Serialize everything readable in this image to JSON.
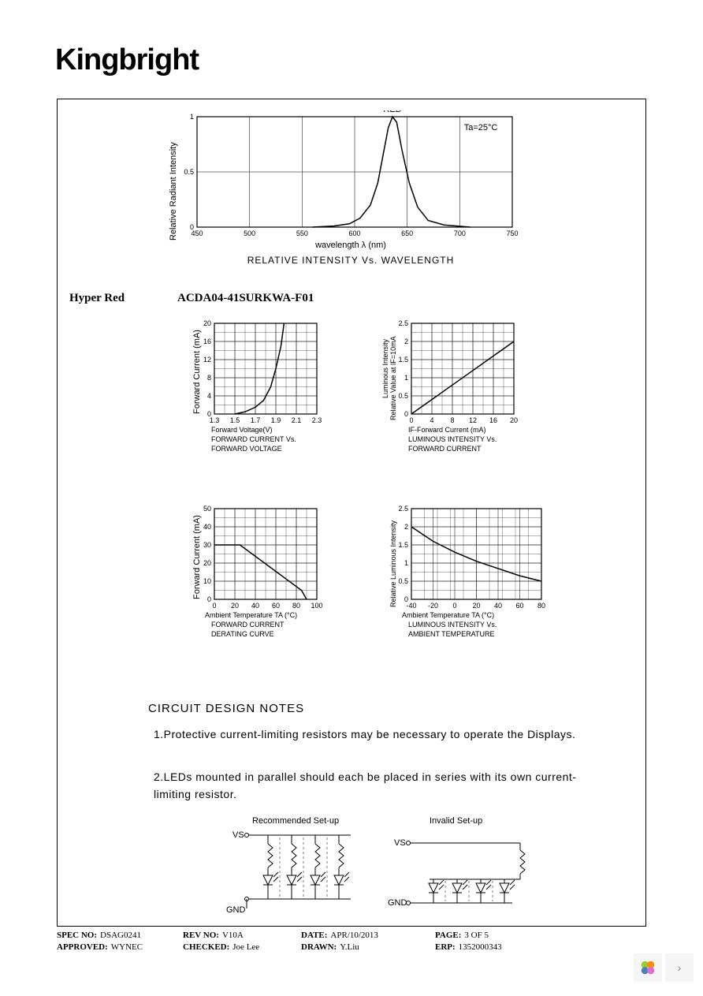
{
  "brand": "Kingbright",
  "section": {
    "hyper_red_label": "Hyper Red",
    "part_number": "ACDA04-41SURKWA-F01"
  },
  "chart_top": {
    "type": "line",
    "peak_label": "RED",
    "condition": "Ta=25°C",
    "ylabel": "Relative Radiant Intensity",
    "xlabel": "wavelength λ  (nm)",
    "caption": "RELATIVE INTENSITY Vs. WAVELENGTH",
    "xlim": [
      450,
      750
    ],
    "ylim": [
      0,
      1.0
    ],
    "xticks": [
      450,
      500,
      550,
      600,
      650,
      700,
      750
    ],
    "yticks": [
      0,
      0.5,
      1.0
    ],
    "curve": [
      [
        560,
        0
      ],
      [
        580,
        0.01
      ],
      [
        595,
        0.03
      ],
      [
        605,
        0.08
      ],
      [
        615,
        0.2
      ],
      [
        622,
        0.4
      ],
      [
        628,
        0.7
      ],
      [
        632,
        0.9
      ],
      [
        636,
        1.0
      ],
      [
        640,
        0.95
      ],
      [
        645,
        0.7
      ],
      [
        652,
        0.4
      ],
      [
        660,
        0.18
      ],
      [
        670,
        0.06
      ],
      [
        685,
        0.02
      ],
      [
        710,
        0
      ]
    ],
    "line_color": "#000000",
    "grid_color": "#000000",
    "background_color": "#ffffff",
    "font_size": 11
  },
  "chart_fv": {
    "type": "line",
    "ylabel": "Forward Current (mA)",
    "xlabel": "Forward Voltage(V)",
    "caption1": "FORWARD CURRENT Vs.",
    "caption2": "FORWARD VOLTAGE",
    "xlim": [
      1.3,
      2.3
    ],
    "ylim": [
      0,
      20
    ],
    "xticks": [
      1.3,
      1.5,
      1.7,
      1.9,
      2.1,
      2.3
    ],
    "yticks": [
      0,
      4,
      8,
      12,
      16,
      20
    ],
    "curve": [
      [
        1.5,
        0
      ],
      [
        1.6,
        0.5
      ],
      [
        1.7,
        1.5
      ],
      [
        1.78,
        3
      ],
      [
        1.85,
        6
      ],
      [
        1.9,
        10
      ],
      [
        1.95,
        15
      ],
      [
        1.98,
        20
      ]
    ],
    "line_color": "#000000",
    "grid_step_x_minor": 0.1,
    "grid_step_y_minor": 2
  },
  "chart_li": {
    "type": "line",
    "ylabel1": "Luminous Intensity",
    "ylabel2": "Relative Value at IF=10mA",
    "xlabel": "IF-Forward Current (mA)",
    "caption1": "LUMINOUS INTENSITY Vs.",
    "caption2": "FORWARD CURRENT",
    "xlim": [
      0,
      20
    ],
    "ylim": [
      0,
      2.5
    ],
    "xticks": [
      0,
      4,
      8,
      12,
      16,
      20
    ],
    "yticks": [
      0,
      0.5,
      1.0,
      1.5,
      2.0,
      2.5
    ],
    "curve": [
      [
        0,
        0
      ],
      [
        4,
        0.4
      ],
      [
        8,
        0.8
      ],
      [
        12,
        1.2
      ],
      [
        16,
        1.6
      ],
      [
        20,
        2.0
      ]
    ],
    "line_color": "#000000"
  },
  "chart_derating": {
    "type": "line",
    "ylabel": "Forward Current (mA)",
    "xlabel": "Ambient Temperature TA (°C)",
    "caption1": "FORWARD CURRENT",
    "caption2": "DERATING CURVE",
    "xlim": [
      0,
      100
    ],
    "ylim": [
      0,
      50
    ],
    "xticks": [
      0,
      20,
      40,
      60,
      80,
      100
    ],
    "yticks": [
      0,
      10,
      20,
      30,
      40,
      50
    ],
    "curve": [
      [
        0,
        30
      ],
      [
        25,
        30
      ],
      [
        85,
        5
      ],
      [
        90,
        0
      ]
    ],
    "line_color": "#000000"
  },
  "chart_temp": {
    "type": "line",
    "ylabel": "Relative Luminous Intensity",
    "xlabel": "Ambient Temperature TA (°C)",
    "caption1": "LUMINOUS INTENSITY Vs.",
    "caption2": "AMBIENT TEMPERATURE",
    "xlim": [
      -40,
      80
    ],
    "ylim": [
      0,
      2.5
    ],
    "xticks": [
      -40,
      -20,
      0,
      20,
      40,
      60,
      80
    ],
    "yticks": [
      0,
      0.5,
      1.0,
      1.5,
      2.0,
      2.5
    ],
    "curve": [
      [
        -40,
        2.0
      ],
      [
        -20,
        1.6
      ],
      [
        0,
        1.3
      ],
      [
        20,
        1.05
      ],
      [
        40,
        0.85
      ],
      [
        60,
        0.65
      ],
      [
        80,
        0.5
      ]
    ],
    "line_color": "#000000"
  },
  "notes": {
    "heading": "CIRCUIT DESIGN NOTES",
    "item1": "1.Protective current-limiting resistors may be necessary to operate the Displays.",
    "item2": "2.LEDs mounted in parallel should each be placed in series with its own current-limiting resistor."
  },
  "setup": {
    "recommended_label": "Recommended Set-up",
    "invalid_label": "Invalid Set-up",
    "vs_label": "VS",
    "gnd_label": "GND"
  },
  "footer": {
    "spec_no_lbl": "SPEC NO:",
    "spec_no": "DSAG0241",
    "rev_no_lbl": "REV NO:",
    "rev_no": "V10A",
    "date_lbl": "DATE:",
    "date": "APR/10/2013",
    "page_lbl": "PAGE:",
    "page": "3 OF 5",
    "approved_lbl": "APPROVED:",
    "approved": "WYNEC",
    "checked_lbl": "CHECKED:",
    "checked": "Joe Lee",
    "drawn_lbl": "DRAWN:",
    "drawn": "Y.Liu",
    "erp_lbl": "ERP:",
    "erp": "1352000343"
  }
}
